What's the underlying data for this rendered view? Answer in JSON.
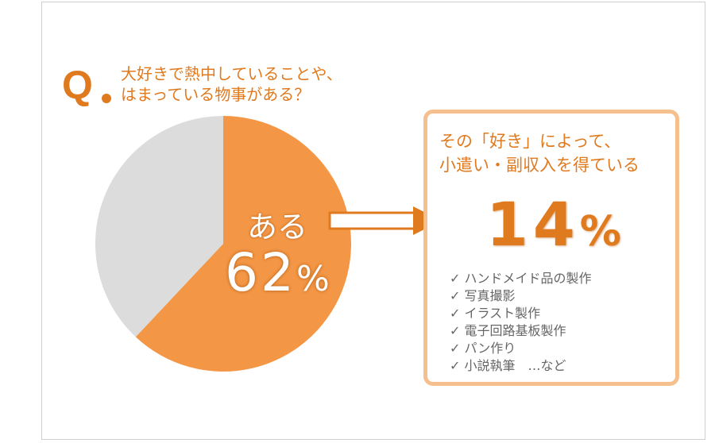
{
  "question": {
    "mark": "Q",
    "lines": [
      "大好きで熱中していることや、",
      "はまっている物事がある？"
    ]
  },
  "chart_data": {
    "type": "pie",
    "slices": [
      {
        "label": "ある",
        "value": 62,
        "color": "#f39746"
      },
      {
        "label": "",
        "value": 38,
        "color": "#dcdcdc"
      }
    ]
  },
  "pie_label": {
    "text": "ある",
    "value": "62",
    "unit": "%"
  },
  "box": {
    "title_lines": [
      "その「好き」によって、",
      "小遣い・副収入を得ている"
    ],
    "value": "14",
    "unit": "%",
    "items": [
      "✓ ハンドメイド品の製作",
      "✓ 写真撮影",
      "✓ イラスト製作",
      "✓ 電子回路基板製作",
      "✓ パン作り",
      "✓ 小説執筆　…など"
    ]
  },
  "colors": {
    "accent": "#e07a1f",
    "box_border": "#f5c08d"
  }
}
